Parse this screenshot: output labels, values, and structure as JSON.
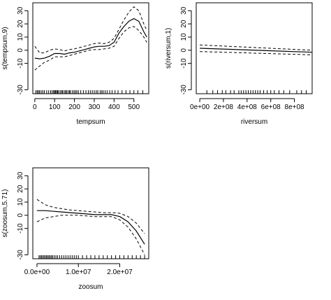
{
  "chart_data": [
    {
      "type": "line",
      "xlabel": "tempsum",
      "ylabel": "s(tempsum,9)",
      "xlim": [
        -10,
        575
      ],
      "ylim": [
        -33,
        36
      ],
      "xticks": [
        0,
        100,
        200,
        300,
        400,
        500
      ],
      "yticks": [
        -30,
        -10,
        0,
        10,
        20,
        30
      ],
      "x": [
        0,
        25,
        50,
        75,
        100,
        125,
        150,
        175,
        200,
        225,
        250,
        275,
        300,
        325,
        350,
        375,
        400,
        425,
        450,
        475,
        500,
        525,
        550,
        565
      ],
      "fit": [
        -6,
        -6.5,
        -6,
        -4.5,
        -2.5,
        -2.5,
        -3,
        -2,
        -1.5,
        -0.5,
        0.5,
        1.5,
        2.5,
        3,
        3,
        3.5,
        6,
        13,
        18,
        22,
        24,
        22,
        14,
        10
      ],
      "upper": [
        3,
        -2,
        -2,
        0,
        1,
        0.5,
        -0.5,
        0.5,
        1,
        2,
        3,
        4,
        5,
        5.5,
        5,
        6,
        9,
        16,
        23,
        29,
        33,
        30,
        20,
        15
      ],
      "lower": [
        -15,
        -12,
        -9,
        -7.5,
        -5,
        -5,
        -5,
        -4,
        -3,
        -2,
        -1,
        0,
        0.5,
        0.5,
        1,
        1.5,
        3,
        9,
        14,
        17,
        18,
        15,
        10,
        6
      ],
      "rug": [
        5,
        12,
        18,
        24,
        32,
        40,
        48,
        60,
        70,
        80,
        88,
        95,
        100,
        105,
        110,
        115,
        120,
        128,
        135,
        140,
        148,
        155,
        160,
        168,
        175,
        180,
        190,
        198,
        205,
        212,
        220,
        232,
        245,
        258,
        270,
        280,
        290,
        300,
        310,
        318,
        330,
        338,
        345,
        355,
        365,
        378,
        390,
        405,
        420,
        440,
        460,
        480,
        500,
        520,
        545
      ]
    },
    {
      "type": "line",
      "xlabel": "riversum",
      "ylabel": "s(riversum,1)",
      "xlim": [
        -30000000,
        950000000
      ],
      "ylim": [
        -33,
        36
      ],
      "xticks": [
        0,
        200000000,
        400000000,
        600000000,
        800000000
      ],
      "xtick_labels": [
        "0e+00",
        "2e+08",
        "4e+08",
        "6e+08",
        "8e+08"
      ],
      "yticks": [
        -30,
        -10,
        0,
        10,
        20,
        30
      ],
      "x": [
        0,
        950000000
      ],
      "fit": [
        1.5,
        -1.5
      ],
      "upper": [
        4,
        0
      ],
      "lower": [
        -1,
        -3.5
      ],
      "rug": [
        60000000,
        110000000,
        150000000,
        190000000,
        220000000,
        260000000,
        290000000,
        330000000,
        350000000,
        370000000,
        390000000,
        410000000,
        430000000,
        450000000,
        470000000,
        490000000,
        510000000,
        540000000,
        570000000,
        600000000,
        630000000,
        670000000,
        710000000,
        760000000,
        820000000,
        860000000,
        900000000
      ]
    },
    {
      "type": "line",
      "xlabel": "zoosum",
      "ylabel": "s(zoosum,5.71)",
      "xlim": [
        -1000000,
        27000000
      ],
      "ylim": [
        -33,
        36
      ],
      "xticks": [
        0,
        10000000,
        20000000
      ],
      "xtick_labels": [
        "0.0e+00",
        "1.0e+07",
        "2.0e+07"
      ],
      "yticks": [
        -30,
        -10,
        0,
        10,
        20,
        30
      ],
      "x": [
        0,
        2000000,
        4000000,
        6000000,
        8000000,
        10000000,
        12000000,
        14000000,
        16000000,
        18000000,
        20000000,
        22000000,
        24000000,
        26000000
      ],
      "fit": [
        3.5,
        3.5,
        3,
        2.5,
        2,
        1.5,
        1,
        0.5,
        0.5,
        0.5,
        -1,
        -5,
        -12,
        -22
      ],
      "upper": [
        12,
        8,
        6,
        5,
        4,
        3.5,
        3,
        2.5,
        2,
        2,
        1.5,
        -1,
        -6,
        -14
      ],
      "lower": [
        -5,
        -2,
        -1,
        0,
        0,
        0,
        -0.5,
        -1,
        -1,
        -1,
        -3.5,
        -9,
        -18,
        -30
      ],
      "rug": [
        500000,
        800000,
        1100000,
        1400000,
        1700000,
        2000000,
        2300000,
        2600000,
        2900000,
        3200000,
        3500000,
        3800000,
        4200000,
        4600000,
        5000000,
        5500000,
        6000000,
        6500000,
        7000000,
        7500000,
        8000000,
        8500000,
        9000000,
        9500000,
        10000000,
        11000000,
        12000000,
        13000000,
        14000000,
        15000000,
        16000000,
        17000000,
        18000000,
        19000000,
        20000000,
        21000000,
        22000000,
        23000000,
        24000000,
        25000000,
        26000000
      ]
    }
  ]
}
